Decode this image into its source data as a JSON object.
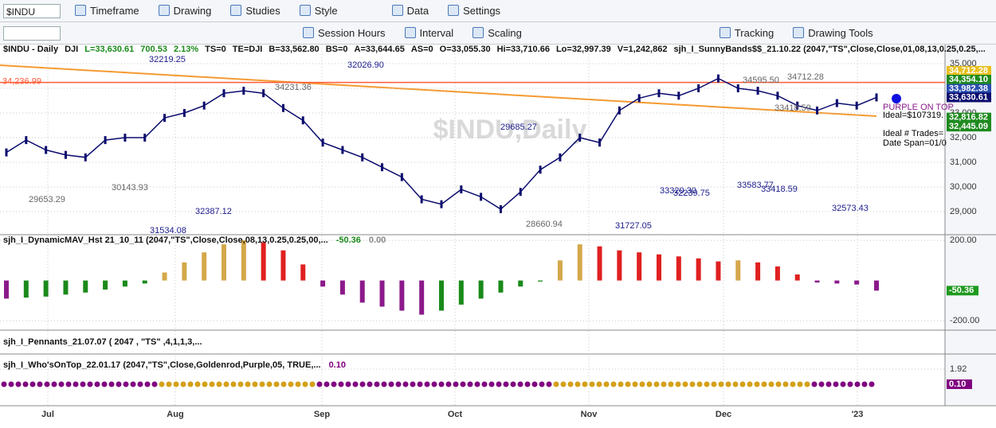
{
  "toolbar": {
    "symbol": "$INDU",
    "menu": [
      "Timeframe",
      "Drawing",
      "Studies",
      "Style",
      "Data",
      "Settings"
    ],
    "tools": [
      "Session Hours",
      "Interval",
      "Scaling",
      "Tracking",
      "Drawing Tools"
    ]
  },
  "chart": {
    "header": [
      "$INDU - Daily",
      "DJI",
      "L=33,630.61",
      "700.53",
      "2.13%",
      "TS=0",
      "TE=DJI",
      "B=33,562.80",
      "BS=0",
      "A=33,644.65",
      "AS=0",
      "O=33,055.30",
      "Hi=33,710.66",
      "Lo=32,997.39",
      "V=1,242,862",
      "sjh_I_SunnyBands$$_21.10.22 (2047,\"TS\",Close,Close,01,08,13,0.25,0.25,..."
    ],
    "watermark": "$INDU,Daily",
    "price": {
      "type": "line",
      "color": "#0b0b6e",
      "values": [
        31400,
        31900,
        31500,
        31300,
        31200,
        31900,
        32000,
        32000,
        32800,
        33000,
        33300,
        33800,
        33900,
        33800,
        33200,
        32700,
        31800,
        31500,
        31200,
        30800,
        30400,
        29500,
        29300,
        29900,
        29600,
        29100,
        29800,
        30700,
        31200,
        32000,
        31800,
        33100,
        33600,
        33800,
        33700,
        34000,
        34400,
        34000,
        33900,
        33700,
        33300,
        33100,
        33400,
        33300,
        33630.61
      ],
      "ylim": [
        28065,
        35774
      ],
      "yticks": [
        {
          "value": 29000,
          "label": "29,000"
        },
        {
          "value": 30000,
          "label": "30,000"
        },
        {
          "value": 31000,
          "label": "31,000"
        },
        {
          "value": 32000,
          "label": "32,000"
        },
        {
          "value": 33000,
          "label": "33,000"
        },
        {
          "value": 34000,
          "label": "34,000"
        },
        {
          "value": 35000,
          "label": "35,000"
        }
      ]
    },
    "level_line": {
      "value": 34236.99,
      "label": "34,236.99",
      "color": "#ff5a36"
    },
    "annotations": [
      "32219.25",
      "32026.90",
      "34231.36",
      "29685.27",
      "34595.50",
      "34712.28",
      "33418.59",
      "30143.93",
      "29653.29",
      "32387.12",
      "31534.08",
      "28660.94",
      "31727.05",
      "33320.30",
      "32239.75",
      "33583.77",
      "33418.59",
      "32573.43"
    ],
    "side_notes": [
      "PURPLE ON TOP",
      "Ideal=$107319.",
      "Ideal # Trades=",
      "Date Span=01/0"
    ],
    "value_boxes": [
      {
        "value": 34712.28,
        "label": "34,712.28",
        "color": "#e8c020"
      },
      {
        "value": 34354.1,
        "label": "34,354.10",
        "color": "#1f8a1f"
      },
      {
        "value": 33982.38,
        "label": "33,982.38",
        "color": "#2a4fb0"
      },
      {
        "value": 33630.61,
        "label": "33,630.61",
        "color": "#0b0b6e"
      },
      {
        "value": 32816.82,
        "label": "32,816.82",
        "color": "#1f8a1f"
      },
      {
        "value": 32445.09,
        "label": "32,445.09",
        "color": "#1f8a1f"
      }
    ],
    "histogram": {
      "type": "bar",
      "title": "sjh_I_DynamicMAV_Hst 21_10_11 (2047,\"TS\",Close,Close,08,13,0.25,0.25,00,...",
      "last": "-50.36",
      "zero": "0.00",
      "values": [
        -90,
        -85,
        -80,
        -70,
        -60,
        -45,
        -30,
        -15,
        40,
        90,
        140,
        180,
        200,
        190,
        150,
        80,
        -30,
        -70,
        -110,
        -130,
        -150,
        -170,
        -150,
        -120,
        -90,
        -60,
        -30,
        -5,
        100,
        180,
        170,
        150,
        140,
        130,
        120,
        110,
        95,
        100,
        90,
        70,
        30,
        -10,
        -15,
        -20,
        -50.36
      ],
      "ylim": [
        -247,
        228
      ],
      "yticks": [
        {
          "value": 200,
          "label": "200.00"
        },
        {
          "value": -200,
          "label": "-200.00"
        }
      ],
      "value_box": {
        "value": -50.36,
        "label": "-50.36",
        "color": "#1f9a1f"
      },
      "colors": {
        "rising_positive": "#d4a84a",
        "falling_positive": "#e02020",
        "falling_negative": "#8b1a8b",
        "rising_negative": "#1a8a1a"
      }
    },
    "pennants": {
      "title": "sjh_I_Pennants_21.07.07 ( 2047 , \"TS\" ,4,1,1,3,..."
    },
    "whos_on_top": {
      "title": "sjh_I_Who'sOnTop_22.01.17 (2047,\"TS\",Close,Goldenrod,Purple,05, TRUE,...",
      "last": {
        "value": 0.1,
        "label": "0.10"
      },
      "ylim": [
        -2.01,
        3.74
      ],
      "yticks": [
        1.92
      ],
      "colors": {
        "above": "#d4a017",
        "below": "#800080"
      }
    },
    "xaxis": {
      "labels": [
        "Jul",
        "Aug",
        "Sep",
        "Oct",
        "Nov",
        "Dec",
        "'23"
      ]
    }
  }
}
